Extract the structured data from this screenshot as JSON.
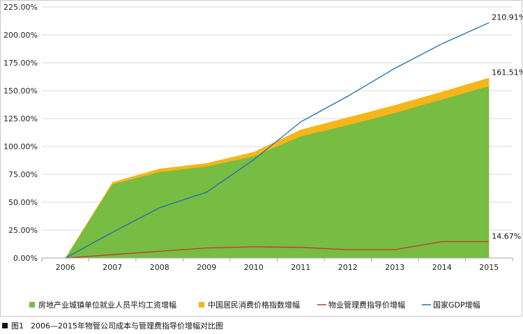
{
  "chart_data": {
    "type": "area",
    "categories": [
      "2006",
      "2007",
      "2008",
      "2009",
      "2010",
      "2011",
      "2012",
      "2013",
      "2014",
      "2015"
    ],
    "y_tick_labels": [
      "0.00%",
      "25.00%",
      "50.00%",
      "75.00%",
      "100.00%",
      "125.00%",
      "150.00%",
      "175.00%",
      "200.00%",
      "225.00%"
    ],
    "ylim": [
      0,
      225
    ],
    "grid": true,
    "legend_position": "bottom",
    "series": [
      {
        "name": "房地产业城镇单位就业人员平均工资增幅",
        "kind": "area",
        "color": "#77bc43",
        "values": [
          0,
          66,
          77,
          82,
          91,
          109,
          119,
          130,
          142,
          154
        ]
      },
      {
        "name": "中国居民消费价格指数增幅",
        "kind": "area",
        "color": "#f6b51b",
        "values": [
          0,
          68,
          80,
          85,
          95,
          115,
          126,
          137,
          149,
          161.51
        ]
      },
      {
        "name": "物业管理费指导价增幅",
        "kind": "line",
        "color": "#c0392b",
        "values": [
          0,
          3,
          6,
          9,
          10,
          9.5,
          7.5,
          7.5,
          14.67,
          14.67
        ]
      },
      {
        "name": "国家GDP增幅",
        "kind": "line",
        "color": "#1f6fb5",
        "values": [
          0,
          23,
          45,
          59,
          88,
          122,
          145,
          170,
          192,
          210.91
        ]
      }
    ],
    "annotations": [
      {
        "text": "210.91%",
        "series": 3,
        "index": 9
      },
      {
        "text": "161.51%",
        "series": 1,
        "index": 9
      },
      {
        "text": "14.67%",
        "series": 2,
        "index": 9
      }
    ]
  },
  "caption": {
    "number": "图1",
    "text": "2006—2015年物管公司成本与管理费指导价增幅对比图"
  }
}
